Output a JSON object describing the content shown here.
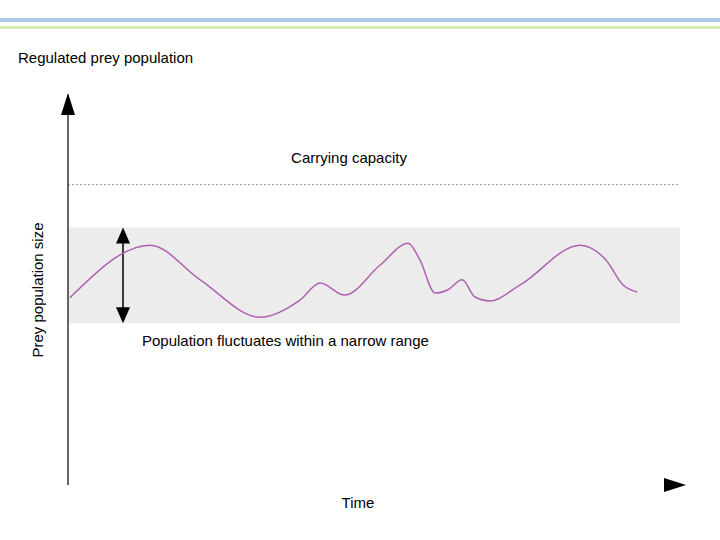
{
  "chart_data": {
    "type": "line",
    "title": "Regulated prey population",
    "x_label": "Time",
    "y_label": "Prey population size",
    "x": [
      0.3,
      13.4,
      21.6,
      31.4,
      37.9,
      41.2,
      45.2,
      51,
      55.6,
      57.5,
      60,
      62,
      64.4,
      66.5,
      68.9,
      73.9,
      83.7,
      87.9,
      90.7,
      93
    ],
    "values": [
      48,
      61.5,
      52.6,
      43,
      47.4,
      51.8,
      48.7,
      56.4,
      62,
      57.7,
      49.2,
      50,
      52.6,
      48.2,
      47.2,
      51.3,
      61.5,
      57.7,
      51.3,
      49.5
    ],
    "color": "#b060b0",
    "xlim": [
      0,
      100
    ],
    "ylim": [
      0,
      100
    ],
    "tick_labels": false,
    "annotations": [
      {
        "type": "line",
        "text": "Carrying capacity",
        "y": 77
      },
      {
        "type": "band",
        "text": "Population fluctuates within a narrow range",
        "y_range": [
          41.5,
          66
        ]
      }
    ]
  }
}
